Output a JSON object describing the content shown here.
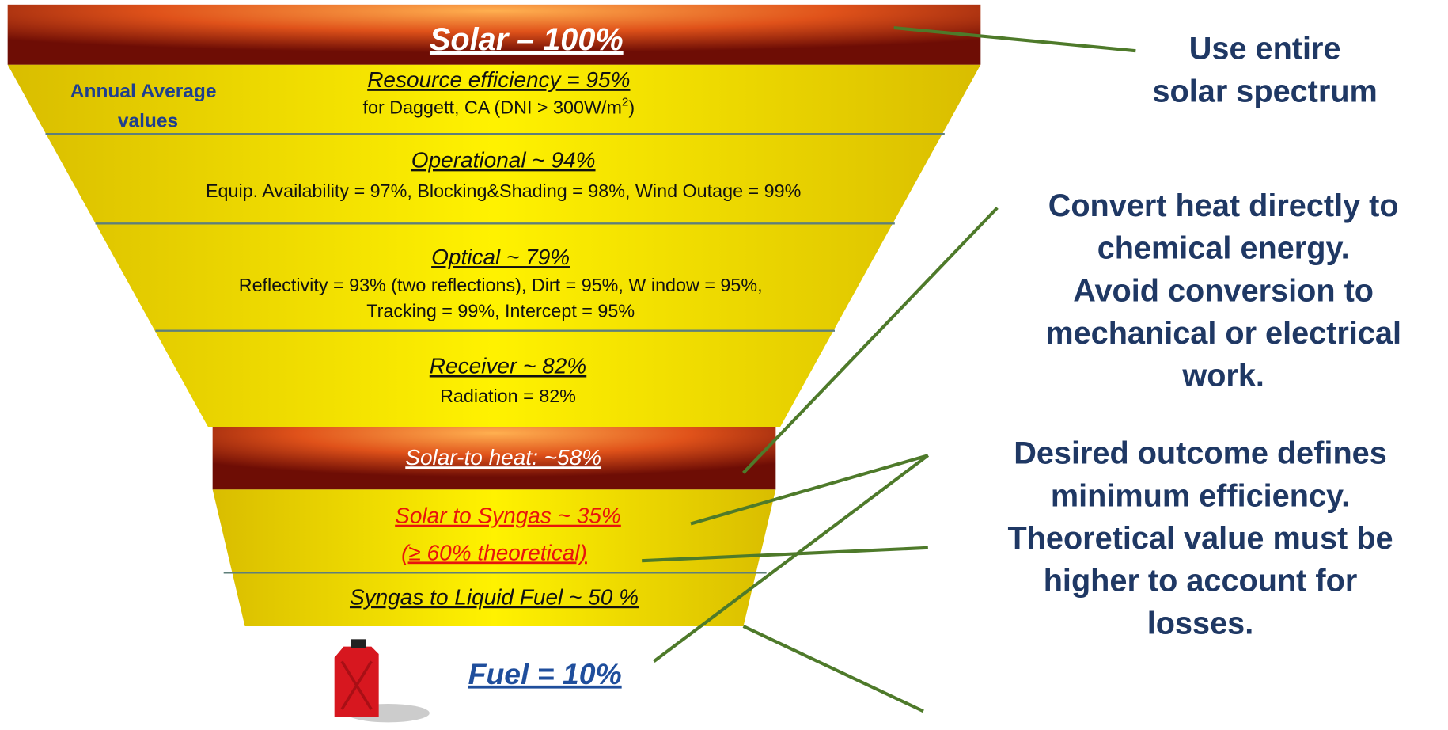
{
  "funnel": {
    "top": "Solar – 100%",
    "side_label": [
      "Annual Average",
      "values"
    ],
    "stages": [
      {
        "title": "Resource efficiency = 95%",
        "detail_parts": [
          "for Daggett,  CA (DNI > 300W/m",
          "2",
          ")"
        ]
      },
      {
        "title": "Operational ~ 94%",
        "details": [
          "Equip. Availability = 97%, Blocking&Shading = 98%, Wind Outage = 99%"
        ]
      },
      {
        "title": "Optical ~ 79%",
        "details": [
          "Reflectivity = 93% (two reflections), Dirt = 95%, W indow = 95%,",
          "Tracking  = 99%, Intercept = 95%"
        ]
      },
      {
        "title": "Receiver ~  82%",
        "details": [
          "Radiation = 82%"
        ]
      }
    ],
    "heat": "Solar-to heat: ~58%",
    "syngas": [
      "Solar to Syngas ~  35%",
      "(≥ 60% theoretical)"
    ],
    "liquid": "Syngas to Liquid Fuel ~  50 %",
    "fuel": "Fuel = 10%"
  },
  "notes": [
    [
      "Use entire",
      "solar spectrum"
    ],
    [
      "Convert heat directly to",
      "chemical energy.",
      "Avoid conversion to",
      "mechanical or electrical",
      "work."
    ],
    [
      "Desired outcome defines",
      "minimum efficiency.",
      "Theoretical value must be",
      "higher to account for",
      "losses."
    ]
  ]
}
